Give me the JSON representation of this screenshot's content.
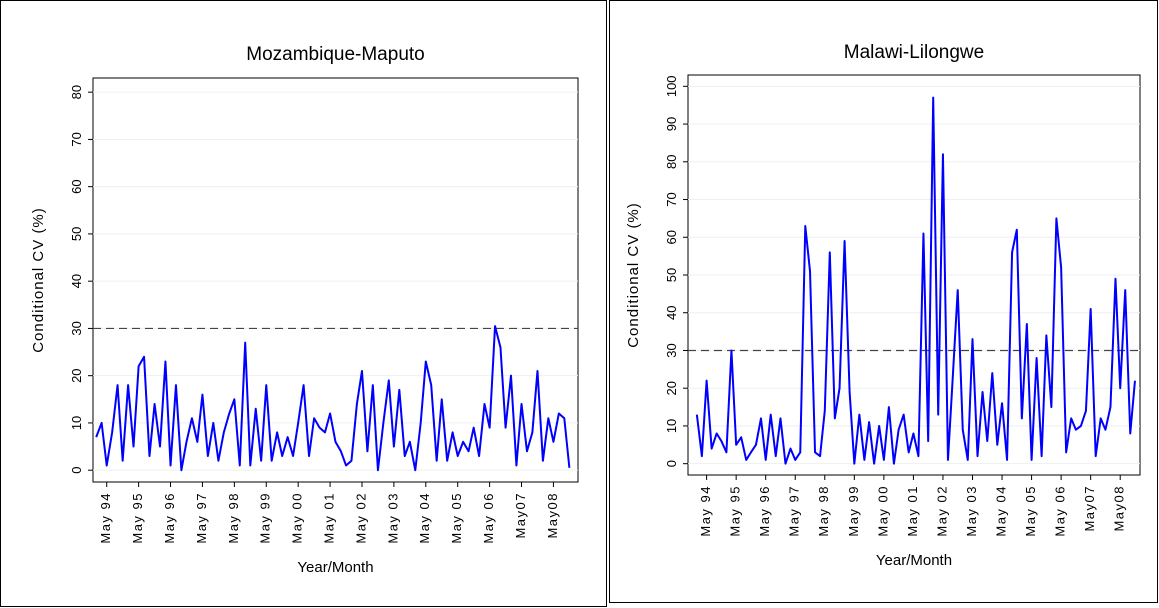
{
  "chart_data": [
    {
      "type": "line",
      "title": "Mozambique-Maputo",
      "xlabel": "Year/Month",
      "ylabel": "Conditional CV (%)",
      "color": "#0000ff",
      "grid": true,
      "hline": 30,
      "xlim": [
        1993.9,
        2009.1
      ],
      "ylim": [
        -2.5,
        83
      ],
      "yticks": [
        0,
        10,
        20,
        30,
        40,
        50,
        60,
        70,
        80
      ],
      "xticks": [
        {
          "value": 1994.33,
          "label": "May 94"
        },
        {
          "value": 1995.33,
          "label": "May 95"
        },
        {
          "value": 1996.33,
          "label": "May 96"
        },
        {
          "value": 1997.33,
          "label": "May 97"
        },
        {
          "value": 1998.33,
          "label": "May 98"
        },
        {
          "value": 1999.33,
          "label": "May 99"
        },
        {
          "value": 2000.33,
          "label": "May 00"
        },
        {
          "value": 2001.33,
          "label": "May 01"
        },
        {
          "value": 2002.33,
          "label": "May 02"
        },
        {
          "value": 2003.33,
          "label": "May 03"
        },
        {
          "value": 2004.33,
          "label": "May 04"
        },
        {
          "value": 2005.33,
          "label": "May 05"
        },
        {
          "value": 2006.33,
          "label": "May 06"
        },
        {
          "value": 2007.33,
          "label": "May07"
        },
        {
          "value": 2008.33,
          "label": "May08"
        }
      ],
      "x": [
        1994,
        1994.17,
        1994.33,
        1994.5,
        1994.67,
        1994.83,
        1995,
        1995.17,
        1995.33,
        1995.5,
        1995.67,
        1995.83,
        1996,
        1996.17,
        1996.33,
        1996.5,
        1996.67,
        1996.83,
        1997,
        1997.17,
        1997.33,
        1997.5,
        1997.67,
        1997.83,
        1998,
        1998.17,
        1998.33,
        1998.5,
        1998.67,
        1998.83,
        1999,
        1999.17,
        1999.33,
        1999.5,
        1999.67,
        1999.83,
        2000,
        2000.17,
        2000.33,
        2000.5,
        2000.67,
        2000.83,
        2001,
        2001.17,
        2001.33,
        2001.5,
        2001.67,
        2001.83,
        2002,
        2002.17,
        2002.33,
        2002.5,
        2002.67,
        2002.83,
        2003,
        2003.17,
        2003.33,
        2003.5,
        2003.67,
        2003.83,
        2004,
        2004.17,
        2004.33,
        2004.5,
        2004.67,
        2004.83,
        2005,
        2005.17,
        2005.33,
        2005.5,
        2005.67,
        2005.83,
        2006,
        2006.17,
        2006.33,
        2006.5,
        2006.67,
        2006.83,
        2007,
        2007.17,
        2007.33,
        2007.5,
        2007.67,
        2007.83,
        2008,
        2008.17,
        2008.33,
        2008.5,
        2008.67,
        2008.83
      ],
      "values": [
        7,
        10,
        1,
        8,
        18,
        2,
        18,
        5,
        22,
        24,
        3,
        14,
        5,
        23,
        1,
        18,
        0,
        6,
        11,
        6,
        16,
        3,
        10,
        2,
        8,
        12,
        15,
        1,
        27,
        1,
        13,
        2,
        18,
        2,
        8,
        3,
        7,
        3,
        10,
        18,
        3,
        11,
        9,
        8,
        12,
        6,
        4,
        1,
        2,
        14,
        21,
        4,
        18,
        0,
        10,
        19,
        5,
        17,
        3,
        6,
        0,
        10,
        23,
        18,
        2,
        15,
        2,
        8,
        3,
        6,
        4,
        9,
        3,
        14,
        9,
        30.5,
        26,
        9,
        20,
        1,
        14,
        4,
        8,
        21,
        2,
        11,
        6,
        12,
        11,
        0.5
      ]
    },
    {
      "type": "line",
      "title": "Malawi-Lilongwe",
      "xlabel": "Year/Month",
      "ylabel": "Conditional CV (%)",
      "color": "#0000ff",
      "grid": true,
      "hline": 30,
      "xlim": [
        1993.7,
        2009.0
      ],
      "ylim": [
        -3,
        103
      ],
      "yticks": [
        0,
        10,
        20,
        30,
        40,
        50,
        60,
        70,
        80,
        90,
        100
      ],
      "xticks": [
        {
          "value": 1994.33,
          "label": "May 94"
        },
        {
          "value": 1995.33,
          "label": "May 95"
        },
        {
          "value": 1996.33,
          "label": "May 96"
        },
        {
          "value": 1997.33,
          "label": "May 97"
        },
        {
          "value": 1998.33,
          "label": "May 98"
        },
        {
          "value": 1999.33,
          "label": "May 99"
        },
        {
          "value": 2000.33,
          "label": "May 00"
        },
        {
          "value": 2001.33,
          "label": "May 01"
        },
        {
          "value": 2002.33,
          "label": "May 02"
        },
        {
          "value": 2003.33,
          "label": "May 03"
        },
        {
          "value": 2004.33,
          "label": "May 04"
        },
        {
          "value": 2005.33,
          "label": "May 05"
        },
        {
          "value": 2006.33,
          "label": "May 06"
        },
        {
          "value": 2007.33,
          "label": "May07"
        },
        {
          "value": 2008.33,
          "label": "May08"
        }
      ],
      "x": [
        1994,
        1994.17,
        1994.33,
        1994.5,
        1994.67,
        1994.83,
        1995,
        1995.17,
        1995.33,
        1995.5,
        1995.67,
        1995.83,
        1996,
        1996.17,
        1996.33,
        1996.5,
        1996.67,
        1996.83,
        1997,
        1997.17,
        1997.33,
        1997.5,
        1997.67,
        1997.83,
        1998,
        1998.17,
        1998.33,
        1998.5,
        1998.67,
        1998.83,
        1999,
        1999.17,
        1999.33,
        1999.5,
        1999.67,
        1999.83,
        2000,
        2000.17,
        2000.33,
        2000.5,
        2000.67,
        2000.83,
        2001,
        2001.17,
        2001.33,
        2001.5,
        2001.67,
        2001.83,
        2002,
        2002.17,
        2002.33,
        2002.5,
        2002.67,
        2002.83,
        2003,
        2003.17,
        2003.33,
        2003.5,
        2003.67,
        2003.83,
        2004,
        2004.17,
        2004.33,
        2004.5,
        2004.67,
        2004.83,
        2005,
        2005.17,
        2005.33,
        2005.5,
        2005.67,
        2005.83,
        2006,
        2006.17,
        2006.33,
        2006.5,
        2006.67,
        2006.83,
        2007,
        2007.17,
        2007.33,
        2007.5,
        2007.67,
        2007.83,
        2008,
        2008.17,
        2008.33,
        2008.5,
        2008.67,
        2008.83
      ],
      "values": [
        13,
        2,
        22,
        4,
        8,
        6,
        3,
        30,
        5,
        7,
        1,
        3,
        5,
        12,
        1,
        13,
        2,
        12,
        0,
        4,
        1,
        3,
        63,
        51,
        3,
        2,
        14,
        56,
        12,
        20,
        59,
        19,
        0,
        13,
        1,
        11,
        0,
        10,
        1,
        15,
        0,
        9,
        13,
        3,
        8,
        2,
        61,
        6,
        97,
        13,
        82,
        1,
        24,
        46,
        9,
        1,
        33,
        2,
        19,
        6,
        24,
        5,
        16,
        1,
        56,
        62,
        12,
        37,
        1,
        28,
        2,
        34,
        15,
        65,
        52,
        3,
        12,
        9,
        10,
        14,
        41,
        2,
        12,
        9,
        15,
        49,
        20,
        46,
        8,
        22
      ]
    }
  ]
}
